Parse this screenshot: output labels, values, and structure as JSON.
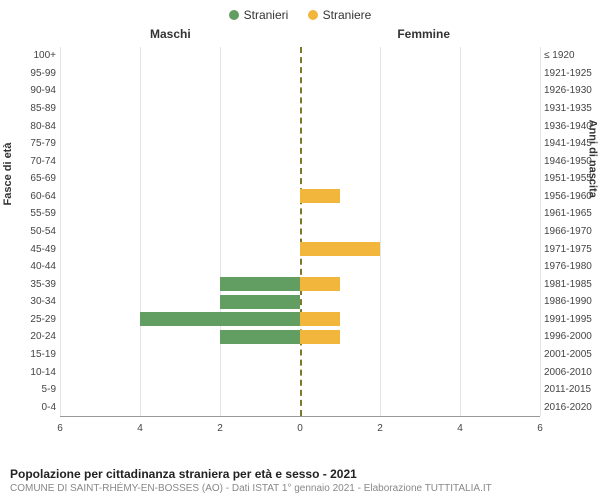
{
  "legend": {
    "male": {
      "label": "Stranieri",
      "color": "#629d62"
    },
    "female": {
      "label": "Straniere",
      "color": "#f2b63c"
    }
  },
  "headers": {
    "left": "Maschi",
    "right": "Femmine"
  },
  "axis": {
    "left_title": "Fasce di età",
    "right_title": "Anni di nascita"
  },
  "chart": {
    "type": "population-pyramid",
    "xmax": 6,
    "xticks": [
      6,
      4,
      2,
      0,
      2,
      4,
      6
    ],
    "background_color": "#ffffff",
    "grid_color": "#e5e5e5",
    "center_line_color": "#7a7a2a",
    "row_height_pct": 4.76,
    "bar_fill_ratio": 0.8,
    "rows": [
      {
        "age": "100+",
        "birth": "≤ 1920",
        "m": 0,
        "f": 0
      },
      {
        "age": "95-99",
        "birth": "1921-1925",
        "m": 0,
        "f": 0
      },
      {
        "age": "90-94",
        "birth": "1926-1930",
        "m": 0,
        "f": 0
      },
      {
        "age": "85-89",
        "birth": "1931-1935",
        "m": 0,
        "f": 0
      },
      {
        "age": "80-84",
        "birth": "1936-1940",
        "m": 0,
        "f": 0
      },
      {
        "age": "75-79",
        "birth": "1941-1945",
        "m": 0,
        "f": 0
      },
      {
        "age": "70-74",
        "birth": "1946-1950",
        "m": 0,
        "f": 0
      },
      {
        "age": "65-69",
        "birth": "1951-1955",
        "m": 0,
        "f": 0
      },
      {
        "age": "60-64",
        "birth": "1956-1960",
        "m": 0,
        "f": 1
      },
      {
        "age": "55-59",
        "birth": "1961-1965",
        "m": 0,
        "f": 0
      },
      {
        "age": "50-54",
        "birth": "1966-1970",
        "m": 0,
        "f": 0
      },
      {
        "age": "45-49",
        "birth": "1971-1975",
        "m": 0,
        "f": 2
      },
      {
        "age": "40-44",
        "birth": "1976-1980",
        "m": 0,
        "f": 0
      },
      {
        "age": "35-39",
        "birth": "1981-1985",
        "m": 2,
        "f": 1
      },
      {
        "age": "30-34",
        "birth": "1986-1990",
        "m": 2,
        "f": 0
      },
      {
        "age": "25-29",
        "birth": "1991-1995",
        "m": 4,
        "f": 1
      },
      {
        "age": "20-24",
        "birth": "1996-2000",
        "m": 2,
        "f": 1
      },
      {
        "age": "15-19",
        "birth": "2001-2005",
        "m": 0,
        "f": 0
      },
      {
        "age": "10-14",
        "birth": "2006-2010",
        "m": 0,
        "f": 0
      },
      {
        "age": "5-9",
        "birth": "2011-2015",
        "m": 0,
        "f": 0
      },
      {
        "age": "0-4",
        "birth": "2016-2020",
        "m": 0,
        "f": 0
      }
    ]
  },
  "footer": {
    "title": "Popolazione per cittadinanza straniera per età e sesso - 2021",
    "subtitle": "COMUNE DI SAINT-RHÉMY-EN-BOSSES (AO) - Dati ISTAT 1° gennaio 2021 - Elaborazione TUTTITALIA.IT"
  }
}
